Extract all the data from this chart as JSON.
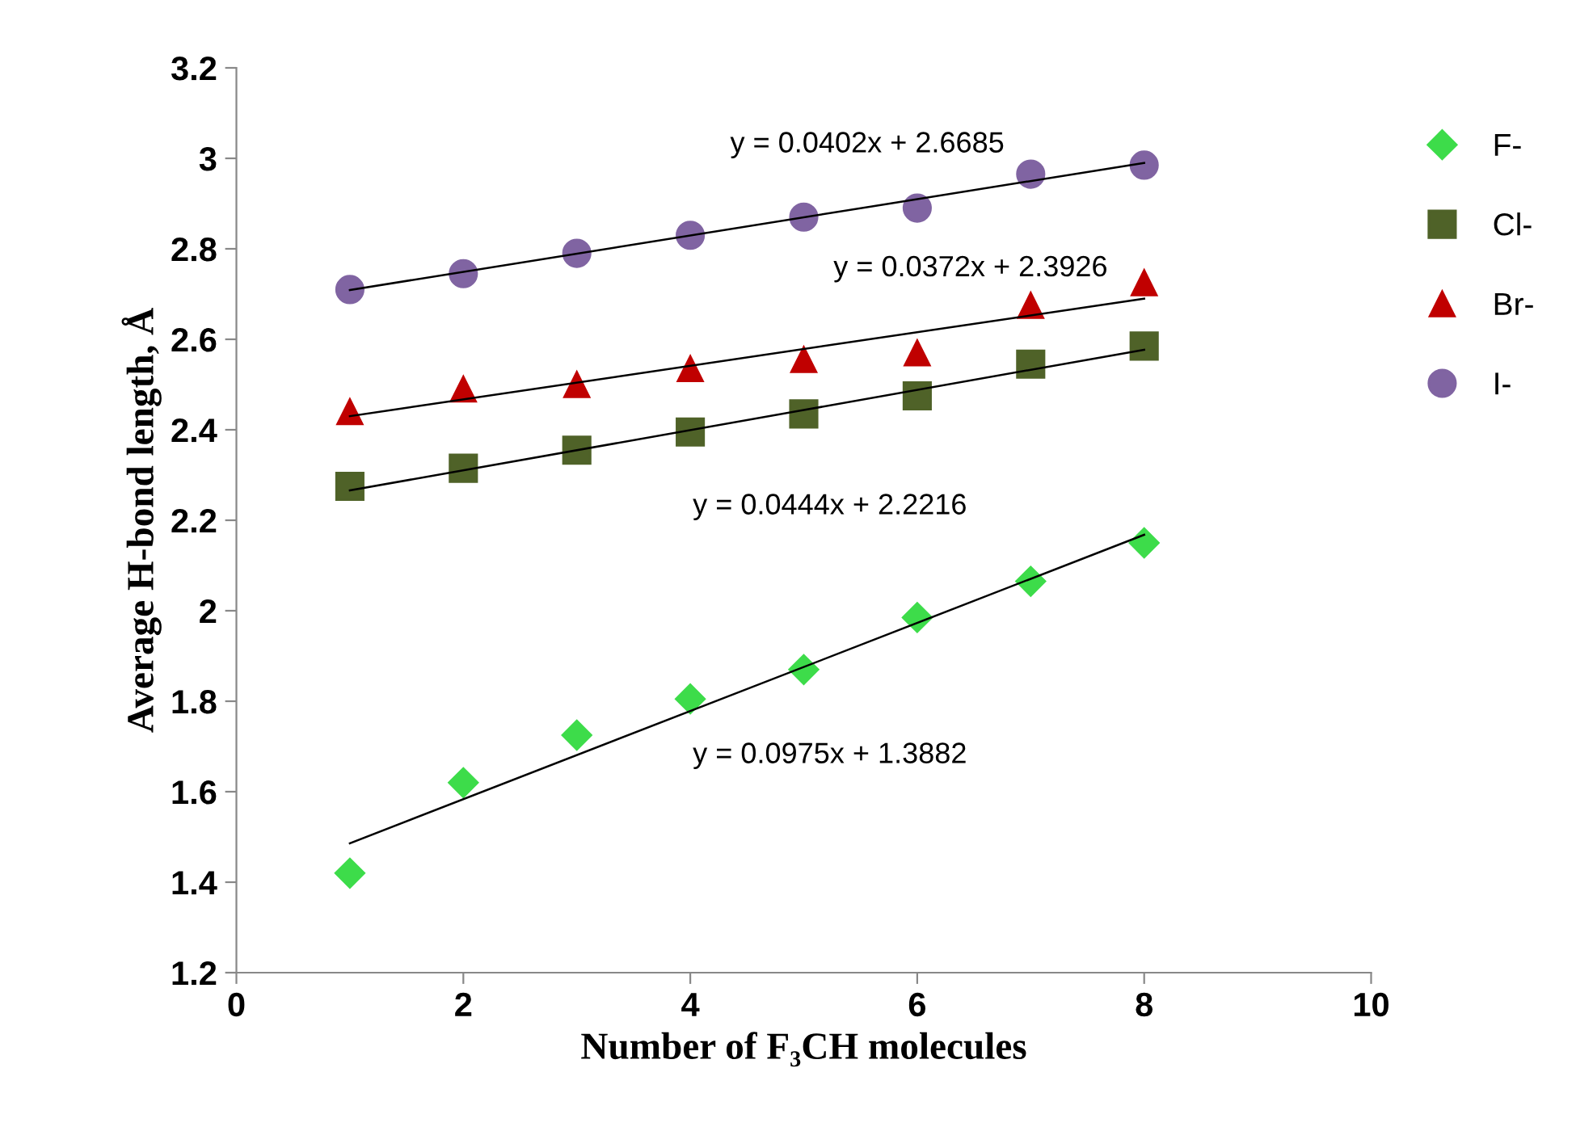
{
  "chart_data": {
    "type": "scatter",
    "xlabel": "Number of F₃CH molecules",
    "ylabel": "Average H-bond length, Å",
    "xlim": [
      0,
      10
    ],
    "xticks": [
      0,
      2,
      4,
      6,
      8,
      10
    ],
    "ylim": [
      1.2,
      3.2
    ],
    "yticks": [
      1.2,
      1.4,
      1.6,
      1.8,
      2,
      2.2,
      2.4,
      2.6,
      2.8,
      3,
      3.2
    ],
    "grid": false,
    "legend": "right",
    "series": [
      {
        "name": "F-",
        "color": "#3ddc4a",
        "marker": "diamond",
        "x": [
          1,
          2,
          3,
          4,
          5,
          6,
          7,
          8
        ],
        "values": [
          1.42,
          1.62,
          1.725,
          1.805,
          1.87,
          1.985,
          2.065,
          2.15
        ]
      },
      {
        "name": "Cl-",
        "color": "#4f6228",
        "marker": "square",
        "x": [
          1,
          2,
          3,
          4,
          5,
          6,
          7,
          8
        ],
        "values": [
          2.275,
          2.315,
          2.355,
          2.395,
          2.435,
          2.475,
          2.545,
          2.585
        ]
      },
      {
        "name": "Br-",
        "color": "#c00000",
        "marker": "triangle",
        "x": [
          1,
          2,
          3,
          4,
          5,
          6,
          7,
          8
        ],
        "values": [
          2.44,
          2.49,
          2.5,
          2.535,
          2.555,
          2.57,
          2.675,
          2.725
        ]
      },
      {
        "name": "I-",
        "color": "#8064a2",
        "marker": "circle",
        "x": [
          1,
          2,
          3,
          4,
          5,
          6,
          7,
          8
        ],
        "values": [
          2.71,
          2.745,
          2.79,
          2.83,
          2.87,
          2.89,
          2.965,
          2.985
        ]
      },
      {
        "type": "line",
        "color": "#000000",
        "marker": "none",
        "x": [
          1,
          8
        ],
        "values": [
          1.486,
          2.168
        ]
      },
      {
        "type": "line",
        "color": "#000000",
        "marker": "none",
        "x": [
          1,
          8
        ],
        "values": [
          2.266,
          2.577
        ]
      },
      {
        "type": "line",
        "color": "#000000",
        "marker": "none",
        "x": [
          1,
          8
        ],
        "values": [
          2.43,
          2.69
        ]
      },
      {
        "type": "line",
        "color": "#000000",
        "marker": "none",
        "x": [
          1,
          8
        ],
        "values": [
          2.709,
          2.99
        ]
      }
    ],
    "annotations": [
      "y = 0.0402x + 2.6685",
      "y = 0.0372x + 2.3926",
      "y = 0.0444x + 2.2216",
      "y = 0.0975x + 1.3882"
    ]
  }
}
